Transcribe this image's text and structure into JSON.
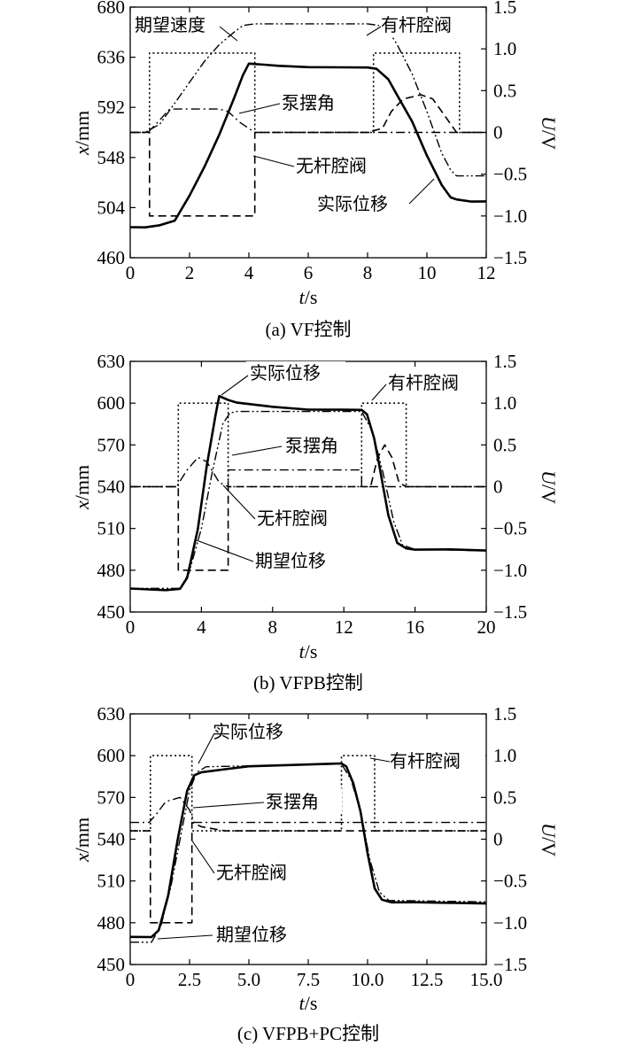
{
  "chart_data": [
    {
      "type": "line",
      "caption": "(a) VF控制",
      "xlabel_var": "t",
      "xlabel_unit": "/s",
      "ylabel_var": "x",
      "ylabel_unit": "/mm",
      "y2label_var": "U",
      "y2label_unit": "/V",
      "xlim": [
        0,
        12
      ],
      "ylim": [
        460,
        680
      ],
      "y2lim": [
        -1.5,
        1.5
      ],
      "xticks": [
        "0",
        "2",
        "4",
        "6",
        "8",
        "10",
        "12"
      ],
      "yticks": [
        "460",
        "504",
        "548",
        "592",
        "636",
        "680"
      ],
      "y2ticks": [
        "1.5",
        "1.0",
        "0.5",
        "0",
        "−0.5",
        "−1.0",
        "−1.5"
      ],
      "annotations": [
        "期望速度",
        "有杆腔阀",
        "泵摆角",
        "无杆腔阀",
        "实际位移"
      ],
      "series": [
        {
          "name": "实际位移",
          "axis": "left",
          "style": "solid",
          "points": [
            [
              0,
              487
            ],
            [
              0.5,
              487
            ],
            [
              1.0,
              489
            ],
            [
              1.5,
              493
            ],
            [
              2.0,
              515
            ],
            [
              2.5,
              540
            ],
            [
              3.0,
              568
            ],
            [
              3.5,
              600
            ],
            [
              3.8,
              620
            ],
            [
              4.0,
              630
            ],
            [
              4.5,
              629
            ],
            [
              5,
              628
            ],
            [
              6,
              627
            ],
            [
              7,
              627
            ],
            [
              8,
              627
            ],
            [
              8.3,
              626
            ],
            [
              8.7,
              617
            ],
            [
              9.0,
              603
            ],
            [
              9.5,
              580
            ],
            [
              10.0,
              550
            ],
            [
              10.5,
              524
            ],
            [
              10.8,
              513
            ],
            [
              11.0,
              511
            ],
            [
              11.5,
              509
            ],
            [
              12,
              509
            ]
          ]
        },
        {
          "name": "期望速度",
          "axis": "right",
          "style": "dashdotdot",
          "points": [
            [
              0,
              0
            ],
            [
              0.5,
              0
            ],
            [
              1.0,
              0.1
            ],
            [
              1.5,
              0.35
            ],
            [
              2.0,
              0.6
            ],
            [
              2.5,
              0.85
            ],
            [
              3.0,
              1.05
            ],
            [
              3.5,
              1.2
            ],
            [
              3.8,
              1.28
            ],
            [
              4.2,
              1.3
            ],
            [
              8.0,
              1.3
            ],
            [
              8.4,
              1.28
            ],
            [
              8.7,
              1.22
            ],
            [
              9.0,
              1.05
            ],
            [
              9.5,
              0.7
            ],
            [
              10.0,
              0.25
            ],
            [
              10.5,
              -0.25
            ],
            [
              10.8,
              -0.45
            ],
            [
              11.0,
              -0.52
            ],
            [
              12,
              -0.52
            ]
          ]
        },
        {
          "name": "有杆腔阀",
          "axis": "right",
          "style": "dotted",
          "points": [
            [
              0,
              0
            ],
            [
              0.65,
              0
            ],
            [
              0.65,
              0.95
            ],
            [
              4.2,
              0.95
            ],
            [
              4.2,
              0
            ],
            [
              8.2,
              0
            ],
            [
              8.2,
              0.95
            ],
            [
              11.1,
              0.95
            ],
            [
              11.1,
              0
            ],
            [
              12,
              0
            ]
          ]
        },
        {
          "name": "无杆腔阀",
          "axis": "right",
          "style": "dashed",
          "points": [
            [
              0,
              0
            ],
            [
              0.65,
              0
            ],
            [
              0.65,
              -1.0
            ],
            [
              4.2,
              -1.0
            ],
            [
              4.2,
              0
            ],
            [
              8.0,
              0
            ],
            [
              8.5,
              0.05
            ],
            [
              8.8,
              0.25
            ],
            [
              9.2,
              0.4
            ],
            [
              9.8,
              0.45
            ],
            [
              10.2,
              0.4
            ],
            [
              10.6,
              0.2
            ],
            [
              11.0,
              0
            ],
            [
              12,
              0
            ]
          ]
        },
        {
          "name": "泵摆角",
          "axis": "right",
          "style": "dashdot",
          "points": [
            [
              0,
              0
            ],
            [
              0.6,
              0
            ],
            [
              1.0,
              0.15
            ],
            [
              1.3,
              0.27
            ],
            [
              1.5,
              0.28
            ],
            [
              3.0,
              0.28
            ],
            [
              3.3,
              0.25
            ],
            [
              3.7,
              0.12
            ],
            [
              4.2,
              0
            ],
            [
              12,
              0
            ]
          ]
        }
      ]
    },
    {
      "type": "line",
      "caption": "(b) VFPB控制",
      "xlabel_var": "t",
      "xlabel_unit": "/s",
      "ylabel_var": "x",
      "ylabel_unit": "/mm",
      "y2label_var": "U",
      "y2label_unit": "/V",
      "xlim": [
        0,
        20
      ],
      "ylim": [
        450,
        630
      ],
      "y2lim": [
        -1.5,
        1.5
      ],
      "xticks": [
        "0",
        "4",
        "8",
        "12",
        "16",
        "20"
      ],
      "yticks": [
        "450",
        "480",
        "510",
        "540",
        "570",
        "600",
        "630"
      ],
      "y2ticks": [
        "1.5",
        "1.0",
        "0.5",
        "0",
        "−0.5",
        "−1.0",
        "−1.5"
      ],
      "annotations": [
        "实际位移",
        "有杆腔阀",
        "泵摆角",
        "无杆腔阀",
        "期望位移"
      ],
      "series": [
        {
          "name": "实际位移",
          "axis": "left",
          "style": "solid",
          "points": [
            [
              0,
              467
            ],
            [
              2.0,
              466
            ],
            [
              2.8,
              467
            ],
            [
              3.2,
              475
            ],
            [
              3.8,
              510
            ],
            [
              4.3,
              555
            ],
            [
              4.8,
              592
            ],
            [
              5.0,
              605
            ],
            [
              5.5,
              602
            ],
            [
              6,
              600
            ],
            [
              8,
              597
            ],
            [
              10,
              595
            ],
            [
              12,
              595
            ],
            [
              13,
              595
            ],
            [
              13.3,
              592
            ],
            [
              13.7,
              575
            ],
            [
              14.0,
              555
            ],
            [
              14.5,
              520
            ],
            [
              15.0,
              500
            ],
            [
              15.5,
              496
            ],
            [
              16,
              495
            ],
            [
              18,
              495
            ],
            [
              20,
              494
            ]
          ]
        },
        {
          "name": "期望位移",
          "axis": "left",
          "style": "dashdotdot",
          "points": [
            [
              0,
              467
            ],
            [
              2.8,
              467
            ],
            [
              3.3,
              478
            ],
            [
              4.0,
              510
            ],
            [
              4.6,
              550
            ],
            [
              5.2,
              585
            ],
            [
              5.6,
              593
            ],
            [
              6,
              594
            ],
            [
              13,
              594
            ],
            [
              13.6,
              580
            ],
            [
              14.2,
              550
            ],
            [
              14.8,
              515
            ],
            [
              15.3,
              498
            ],
            [
              16,
              495
            ],
            [
              20,
              494
            ]
          ]
        },
        {
          "name": "有杆腔阀",
          "axis": "right",
          "style": "dotted",
          "points": [
            [
              0,
              0
            ],
            [
              2.7,
              0
            ],
            [
              2.7,
              1.0
            ],
            [
              5.5,
              1.0
            ],
            [
              5.5,
              0
            ],
            [
              13.0,
              0
            ],
            [
              13.0,
              1.0
            ],
            [
              15.5,
              1.0
            ],
            [
              15.5,
              0
            ],
            [
              20,
              0
            ]
          ]
        },
        {
          "name": "无杆腔阀",
          "axis": "right",
          "style": "dashed",
          "points": [
            [
              0,
              0
            ],
            [
              2.7,
              0
            ],
            [
              2.7,
              -1.0
            ],
            [
              5.5,
              -1.0
            ],
            [
              5.5,
              0
            ],
            [
              13.5,
              0
            ],
            [
              13.9,
              0.35
            ],
            [
              14.3,
              0.5
            ],
            [
              14.7,
              0.35
            ],
            [
              15.1,
              0.05
            ],
            [
              15.5,
              0
            ],
            [
              20,
              0
            ]
          ]
        },
        {
          "name": "泵摆角",
          "axis": "right",
          "style": "dashdot",
          "points": [
            [
              0,
              0
            ],
            [
              2.6,
              0
            ],
            [
              3.2,
              0.2
            ],
            [
              3.8,
              0.35
            ],
            [
              4.3,
              0.3
            ],
            [
              5.0,
              0.05
            ],
            [
              5.5,
              0
            ],
            [
              5.5,
              0.2
            ],
            [
              13.0,
              0.2
            ],
            [
              13.0,
              0
            ],
            [
              20,
              0
            ]
          ]
        }
      ]
    },
    {
      "type": "line",
      "caption": "(c) VFPB+PC控制",
      "xlabel_var": "t",
      "xlabel_unit": "/s",
      "ylabel_var": "x",
      "ylabel_unit": "/mm",
      "y2label_var": "U",
      "y2label_unit": "/V",
      "xlim": [
        0,
        15
      ],
      "ylim": [
        450,
        630
      ],
      "y2lim": [
        -1.5,
        1.5
      ],
      "xticks": [
        "0",
        "2.5",
        "5.0",
        "7.5",
        "10.0",
        "12.5",
        "15.0"
      ],
      "yticks": [
        "450",
        "480",
        "510",
        "540",
        "570",
        "600",
        "630"
      ],
      "y2ticks": [
        "1.5",
        "1.0",
        "0.5",
        "0",
        "−0.5",
        "−1.0",
        "−1.5"
      ],
      "annotations": [
        "实际位移",
        "有杆腔阀",
        "泵摆角",
        "无杆腔阀",
        "期望位移"
      ],
      "series": [
        {
          "name": "实际位移",
          "axis": "left",
          "style": "solid",
          "points": [
            [
              0,
              470
            ],
            [
              0.9,
              470
            ],
            [
              1.2,
              475
            ],
            [
              1.6,
              500
            ],
            [
              2.0,
              540
            ],
            [
              2.4,
              575
            ],
            [
              2.7,
              586
            ],
            [
              3.0,
              588
            ],
            [
              4,
              590
            ],
            [
              5,
              592
            ],
            [
              7,
              593
            ],
            [
              8.9,
              594
            ],
            [
              9.1,
              592
            ],
            [
              9.4,
              580
            ],
            [
              9.7,
              560
            ],
            [
              10.0,
              530
            ],
            [
              10.3,
              505
            ],
            [
              10.6,
              497
            ],
            [
              11,
              495
            ],
            [
              12,
              495
            ],
            [
              15,
              494
            ]
          ]
        },
        {
          "name": "期望位移",
          "axis": "left",
          "style": "dashdotdot",
          "points": [
            [
              0,
              466
            ],
            [
              0.9,
              466
            ],
            [
              1.3,
              478
            ],
            [
              1.7,
              505
            ],
            [
              2.1,
              540
            ],
            [
              2.5,
              575
            ],
            [
              2.8,
              588
            ],
            [
              3.2,
              592
            ],
            [
              8.9,
              594
            ],
            [
              9.3,
              583
            ],
            [
              9.7,
              560
            ],
            [
              10.1,
              525
            ],
            [
              10.5,
              502
            ],
            [
              10.9,
              496
            ],
            [
              15,
              495
            ]
          ]
        },
        {
          "name": "有杆腔阀",
          "axis": "right",
          "style": "dotted",
          "points": [
            [
              0,
              0.1
            ],
            [
              0.85,
              0.1
            ],
            [
              0.85,
              1.0
            ],
            [
              2.6,
              1.0
            ],
            [
              2.6,
              0.1
            ],
            [
              8.9,
              0.1
            ],
            [
              8.9,
              1.0
            ],
            [
              10.3,
              1.0
            ],
            [
              10.3,
              0.1
            ],
            [
              15,
              0.1
            ]
          ]
        },
        {
          "name": "无杆腔阀",
          "axis": "right",
          "style": "dashed",
          "points": [
            [
              0,
              0.1
            ],
            [
              0.85,
              0.1
            ],
            [
              0.85,
              -1.0
            ],
            [
              2.6,
              -1.0
            ],
            [
              2.6,
              0.2
            ],
            [
              3.0,
              0.15
            ],
            [
              4,
              0.1
            ],
            [
              15,
              0.1
            ]
          ]
        },
        {
          "name": "泵摆角",
          "axis": "right",
          "style": "dashdot",
          "points": [
            [
              0,
              0.2
            ],
            [
              0.8,
              0.2
            ],
            [
              1.1,
              0.3
            ],
            [
              1.5,
              0.45
            ],
            [
              2.1,
              0.5
            ],
            [
              2.5,
              0.35
            ],
            [
              2.7,
              0.2
            ],
            [
              15,
              0.2
            ]
          ]
        }
      ]
    }
  ]
}
